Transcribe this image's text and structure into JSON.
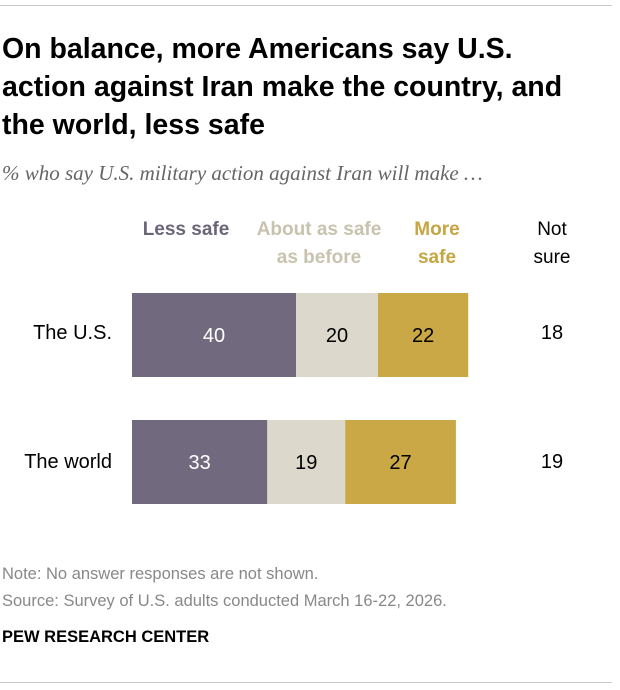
{
  "title": "On balance, more Americans say U.S. action against Iran make the country, and the world, less safe",
  "subtitle": "% who say U.S. military action against Iran will make …",
  "columns": {
    "less_safe": "Less safe",
    "about_same": "About as safe as before",
    "more_safe": "More safe",
    "not_sure": "Not sure"
  },
  "colors": {
    "less_safe": "#716a7e",
    "about_same": "#dcd9cc",
    "more_safe": "#c9a845",
    "less_safe_label": "#6b6578",
    "about_same_label": "#c8c3ae",
    "more_safe_label": "#c7a541"
  },
  "chart_data": {
    "type": "bar",
    "orientation": "horizontal-stacked",
    "categories": [
      "The U.S.",
      "The world"
    ],
    "series": [
      {
        "name": "Less safe",
        "values": [
          40,
          33
        ]
      },
      {
        "name": "About as safe as before",
        "values": [
          20,
          19
        ]
      },
      {
        "name": "More safe",
        "values": [
          22,
          27
        ]
      }
    ],
    "not_sure": {
      "name": "Not sure",
      "values": [
        18,
        19
      ]
    }
  },
  "footer": {
    "note": "Note: No answer responses are not shown.",
    "source": "Source: Survey of U.S. adults conducted March 16-22, 2026.",
    "brand": "PEW RESEARCH CENTER"
  }
}
